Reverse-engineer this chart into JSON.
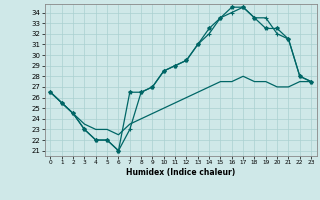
{
  "xlabel": "Humidex (Indice chaleur)",
  "bg_color": "#cfe8e8",
  "grid_color": "#aad0d0",
  "line_color": "#006666",
  "xlim": [
    -0.5,
    23.5
  ],
  "ylim": [
    20.5,
    34.8
  ],
  "yticks": [
    21,
    22,
    23,
    24,
    25,
    26,
    27,
    28,
    29,
    30,
    31,
    32,
    33,
    34
  ],
  "xticks": [
    0,
    1,
    2,
    3,
    4,
    5,
    6,
    7,
    8,
    9,
    10,
    11,
    12,
    13,
    14,
    15,
    16,
    17,
    18,
    19,
    20,
    21,
    22,
    23
  ],
  "line1_x": [
    0,
    1,
    2,
    3,
    4,
    5,
    6,
    7,
    8,
    9,
    10,
    11,
    12,
    13,
    14,
    15,
    16,
    17,
    18,
    19,
    20,
    21,
    22,
    23
  ],
  "line1_y": [
    26.5,
    25.5,
    24.5,
    23.0,
    22.0,
    22.0,
    21.0,
    23.0,
    26.5,
    27.0,
    28.5,
    29.0,
    29.5,
    31.0,
    32.0,
    33.5,
    34.0,
    34.5,
    33.5,
    33.5,
    32.0,
    31.5,
    28.0,
    27.5
  ],
  "line2_x": [
    0,
    1,
    2,
    3,
    4,
    5,
    6,
    7,
    8,
    9,
    10,
    11,
    12,
    13,
    14,
    15,
    16,
    17,
    18,
    19,
    20,
    21,
    22,
    23
  ],
  "line2_y": [
    26.5,
    25.5,
    24.5,
    23.0,
    22.0,
    22.0,
    21.0,
    26.5,
    26.5,
    27.0,
    28.5,
    29.0,
    29.5,
    31.0,
    32.5,
    33.5,
    34.5,
    34.5,
    33.5,
    32.5,
    32.5,
    31.5,
    28.0,
    27.5
  ],
  "line3_x": [
    0,
    1,
    2,
    3,
    4,
    5,
    6,
    7,
    8,
    9,
    10,
    11,
    12,
    13,
    14,
    15,
    16,
    17,
    18,
    19,
    20,
    21,
    22,
    23
  ],
  "line3_y": [
    26.5,
    25.5,
    24.5,
    23.5,
    23.0,
    23.0,
    22.5,
    23.5,
    24.0,
    24.5,
    25.0,
    25.5,
    26.0,
    26.5,
    27.0,
    27.5,
    27.5,
    28.0,
    27.5,
    27.5,
    27.0,
    27.0,
    27.5,
    27.5
  ]
}
